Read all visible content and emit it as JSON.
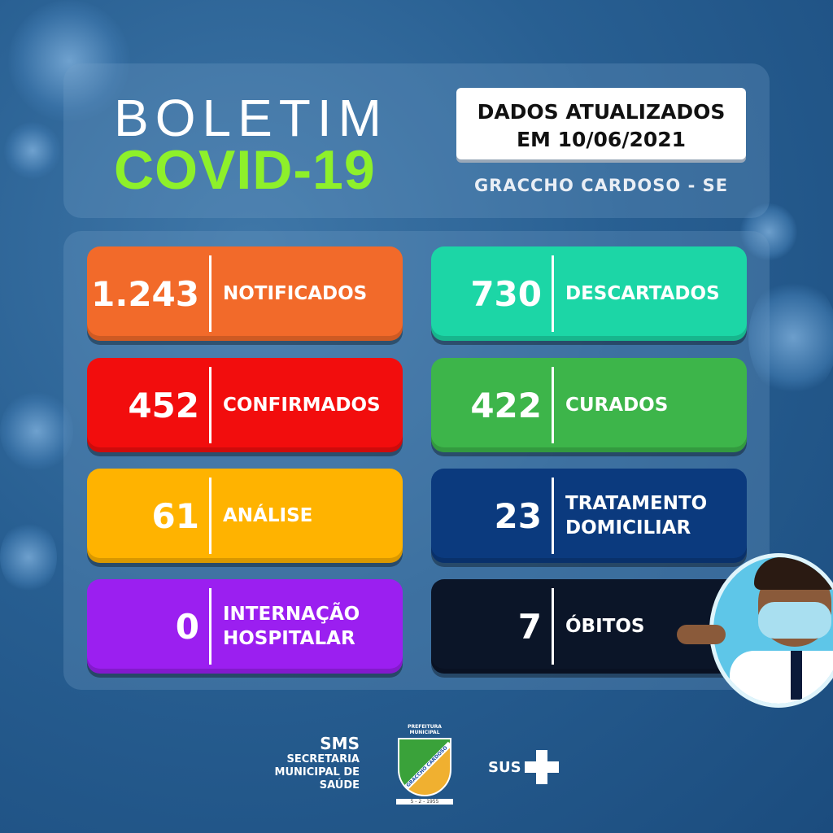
{
  "header": {
    "title_line1": "BOLETIM",
    "title_line2": "COVID-19",
    "date_line1": "DADOS ATUALIZADOS",
    "date_line2": "EM 10/06/2021",
    "city": "GRACCHO CARDOSO - SE"
  },
  "cards": [
    {
      "value": "1.243",
      "label1": "NOTIFICADOS",
      "label2": "",
      "color": "#f26a2a"
    },
    {
      "value": "452",
      "label1": "CONFIRMADOS",
      "label2": "",
      "color": "#f20d0d"
    },
    {
      "value": "61",
      "label1": "ANÁLISE",
      "label2": "",
      "color": "#ffb300"
    },
    {
      "value": "0",
      "label1": "INTERNAÇÃO",
      "label2": "HOSPITALAR",
      "color": "#9b1ff0"
    },
    {
      "value": "730",
      "label1": "DESCARTADOS",
      "label2": "",
      "color": "#1cd6a6"
    },
    {
      "value": "422",
      "label1": "CURADOS",
      "label2": "",
      "color": "#3db54a"
    },
    {
      "value": "23",
      "label1": "TRATAMENTO",
      "label2": "DOMICILIAR",
      "color": "#0b3a7e"
    },
    {
      "value": "7",
      "label1": "ÓBITOS",
      "label2": "",
      "color": "#0b1528"
    }
  ],
  "footer": {
    "sms": "SMS",
    "sms_line1": "SECRETARIA",
    "sms_line2": "MUNICIPAL DE",
    "sms_line3": "SAÚDE",
    "crest_top": "PREFEITURA MUNICIPAL",
    "crest_name": "GRACCHO CARDOSO",
    "crest_date": "5 - 2 - 1955",
    "sus": "SUS"
  }
}
